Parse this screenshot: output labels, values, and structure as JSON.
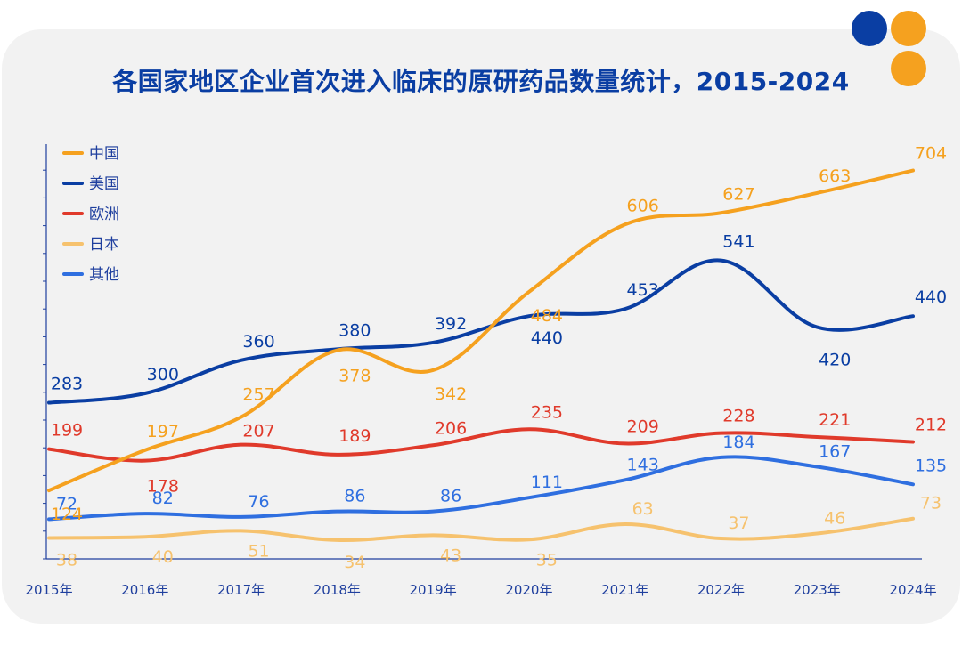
{
  "title": "各国家地区企业首次进入临床的原研药品数量统计，2015-2024",
  "decor": {
    "colors": [
      "#0a3ea3",
      "#f5a11f",
      "#f5a11f"
    ]
  },
  "chart_data": {
    "type": "line",
    "title": "各国家地区企业首次进入临床的原研药品数量统计，2015-2024",
    "categories": [
      "2015年",
      "2016年",
      "2017年",
      "2018年",
      "2019年",
      "2020年",
      "2021年",
      "2022年",
      "2023年",
      "2024年"
    ],
    "ylim": [
      0,
      750
    ],
    "grid": false,
    "legend": "top-left",
    "series": [
      {
        "name": "中国",
        "color": "#f5a11f",
        "values": [
          124,
          197,
          257,
          378,
          342,
          484,
          606,
          627,
          663,
          704
        ]
      },
      {
        "name": "美国",
        "color": "#0a3ea3",
        "values": [
          283,
          300,
          360,
          380,
          392,
          440,
          453,
          541,
          420,
          440
        ]
      },
      {
        "name": "欧洲",
        "color": "#e03a2b",
        "values": [
          199,
          178,
          207,
          189,
          206,
          235,
          209,
          228,
          221,
          212
        ]
      },
      {
        "name": "日本",
        "color": "#f6c26e",
        "values": [
          38,
          40,
          51,
          34,
          43,
          35,
          63,
          37,
          46,
          73
        ]
      },
      {
        "name": "其他",
        "color": "#2f6fe0",
        "values": [
          72,
          82,
          76,
          86,
          86,
          111,
          143,
          184,
          167,
          135
        ]
      }
    ]
  }
}
